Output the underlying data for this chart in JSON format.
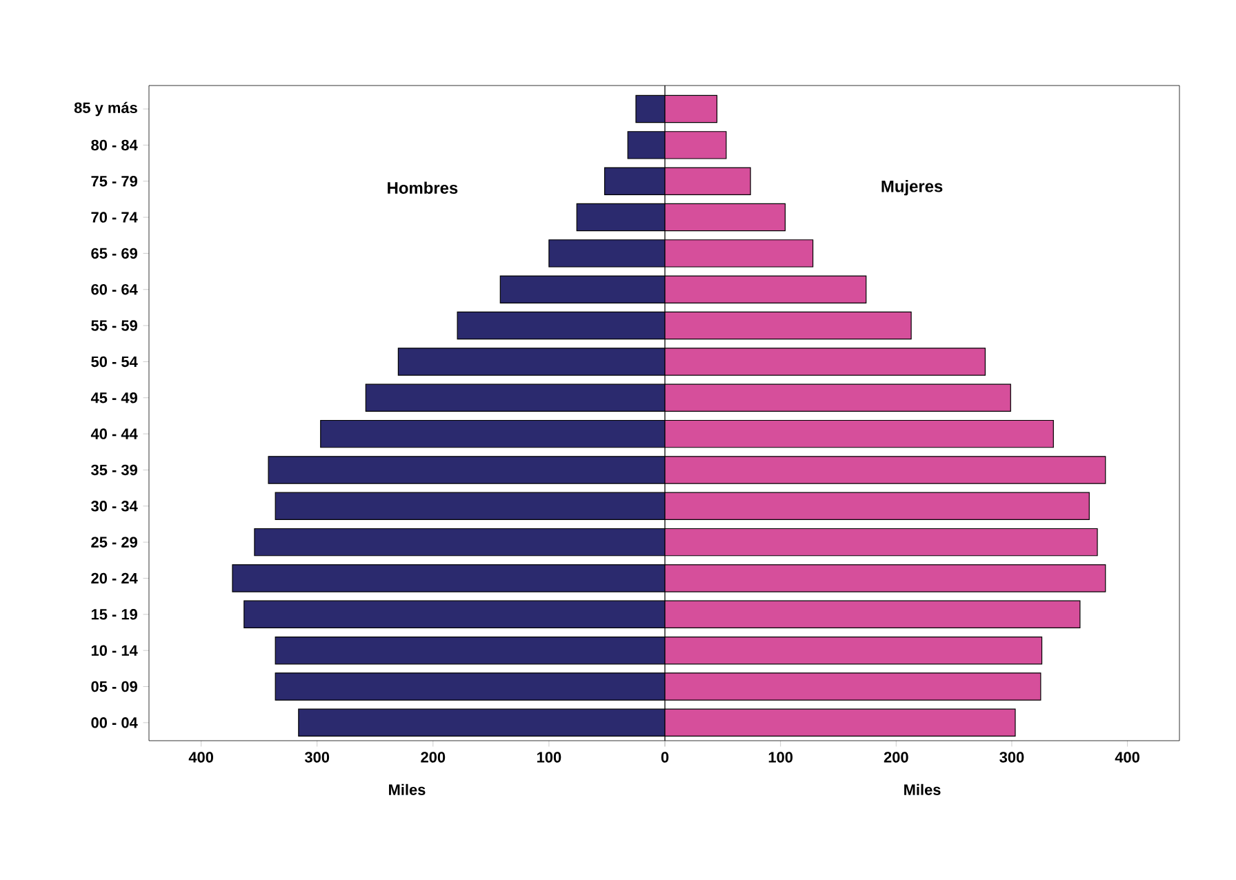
{
  "chart_data": [
    {
      "type": "bar",
      "orientation": "horizontal",
      "xlabel": "Miles",
      "categories": [
        "85 y más",
        "80 - 84",
        "75 - 79",
        "70 - 74",
        "65 - 69",
        "60 - 64",
        "55 - 59",
        "50 - 54",
        "45 - 49",
        "40 - 44",
        "35 - 39",
        "30 - 34",
        "25 - 29",
        "20 - 24",
        "15 - 19",
        "10 - 14",
        "05 - 09",
        "00 - 04"
      ],
      "series": [
        {
          "name": "Hombres",
          "color": "#2b2a6e",
          "values": [
            25,
            32,
            52,
            76,
            100,
            142,
            179,
            230,
            258,
            297,
            342,
            336,
            354,
            373,
            363,
            336,
            336,
            316
          ]
        }
      ],
      "xlim": [
        445,
        0
      ],
      "xticks": [
        400,
        300,
        200,
        100,
        0
      ],
      "grid": false
    },
    {
      "type": "bar",
      "orientation": "horizontal",
      "xlabel": "Miles",
      "categories": [
        null,
        null,
        null,
        null,
        null,
        null,
        null,
        null,
        null,
        null,
        null,
        null,
        null,
        null,
        null,
        null,
        null,
        null
      ],
      "series": [
        {
          "name": "Mujeres",
          "color": "#d64f9b",
          "values": [
            45,
            53,
            74,
            104,
            128,
            174,
            213,
            277,
            299,
            336,
            381,
            367,
            374,
            381,
            359,
            326,
            325,
            303
          ]
        }
      ],
      "xlim": [
        0,
        445
      ],
      "xticks": [
        {
          "value": 0,
          "label": null
        },
        100,
        200,
        300,
        400
      ],
      "tick_labels": "x",
      "grid": false
    }
  ]
}
